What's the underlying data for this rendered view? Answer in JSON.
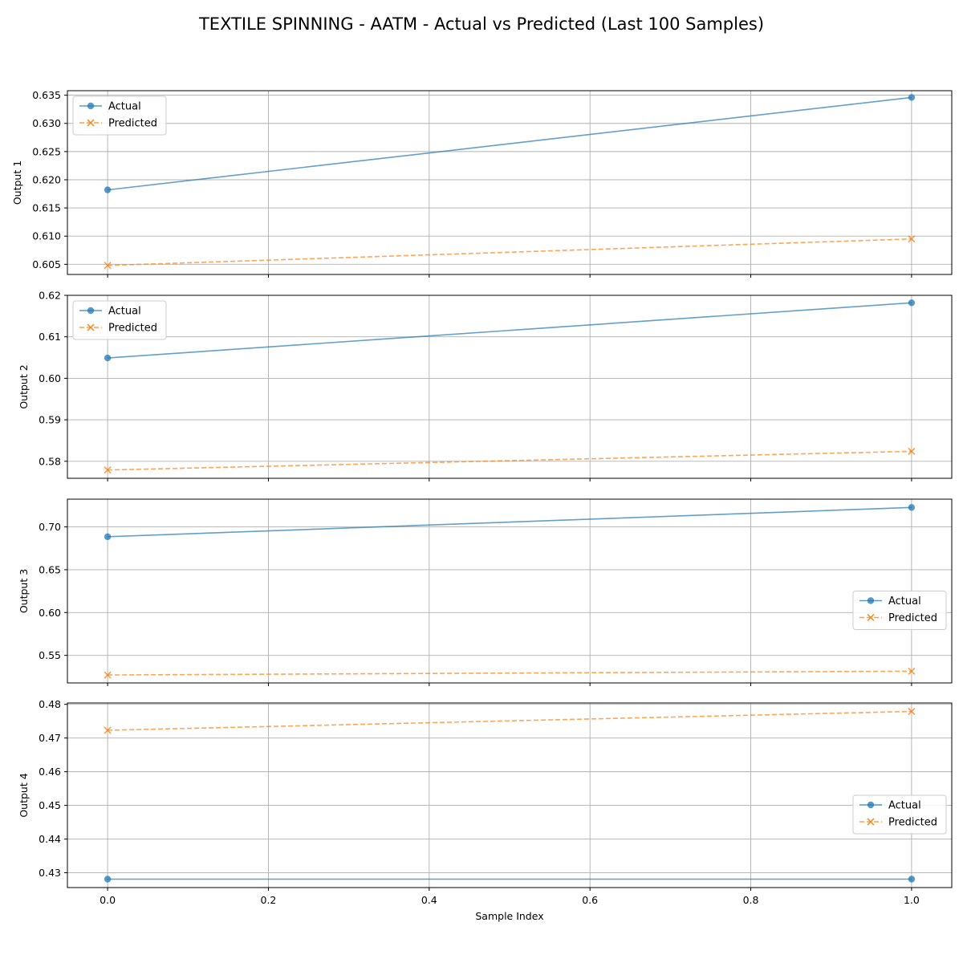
{
  "title": "TEXTILE SPINNING - AATM - Actual vs Predicted (Last 100 Samples)",
  "colors": {
    "actual": "#1f77b4",
    "predicted": "#ff7f0e",
    "grid": "#b0b0b0"
  },
  "chart_data": {
    "type": "line",
    "shared_x": {
      "label": "Sample Index",
      "lim": [
        -0.05,
        1.05
      ],
      "ticks": [
        0.0,
        0.2,
        0.4,
        0.6,
        0.8,
        1.0
      ],
      "tick_labels": [
        "0.0",
        "0.2",
        "0.4",
        "0.6",
        "0.8",
        "1.0"
      ]
    },
    "grid": true,
    "subplots": [
      {
        "ylabel": "Output 1",
        "ylim": [
          0.6032,
          0.6358
        ],
        "yticks": [
          0.605,
          0.61,
          0.615,
          0.62,
          0.625,
          0.63,
          0.635
        ],
        "ytick_labels": [
          "0.605",
          "0.610",
          "0.615",
          "0.620",
          "0.625",
          "0.630",
          "0.635"
        ],
        "legend_loc": "upper-left",
        "series": [
          {
            "name": "Actual",
            "style": "solid-circle",
            "x": [
              0,
              1
            ],
            "values": [
              0.6182,
              0.6346
            ]
          },
          {
            "name": "Predicted",
            "style": "dashed-x",
            "x": [
              0,
              1
            ],
            "values": [
              0.6048,
              0.6095
            ]
          }
        ]
      },
      {
        "ylabel": "Output 2",
        "ylim": [
          0.5759,
          0.62
        ],
        "yticks": [
          0.58,
          0.59,
          0.6,
          0.61,
          0.62
        ],
        "ytick_labels": [
          "0.58",
          "0.59",
          "0.60",
          "0.61",
          "0.62"
        ],
        "legend_loc": "upper-left",
        "series": [
          {
            "name": "Actual",
            "style": "solid-circle",
            "x": [
              0,
              1
            ],
            "values": [
              0.6049,
              0.6182
            ]
          },
          {
            "name": "Predicted",
            "style": "dashed-x",
            "x": [
              0,
              1
            ],
            "values": [
              0.5779,
              0.5824
            ]
          }
        ]
      },
      {
        "ylabel": "Output 3",
        "ylim": [
          0.5178,
          0.7324
        ],
        "yticks": [
          0.55,
          0.6,
          0.65,
          0.7
        ],
        "ytick_labels": [
          "0.55",
          "0.60",
          "0.65",
          "0.70"
        ],
        "legend_loc": "center-right",
        "series": [
          {
            "name": "Actual",
            "style": "solid-circle",
            "x": [
              0,
              1
            ],
            "values": [
              0.6885,
              0.7227
            ]
          },
          {
            "name": "Predicted",
            "style": "dashed-x",
            "x": [
              0,
              1
            ],
            "values": [
              0.5271,
              0.5315
            ]
          }
        ]
      },
      {
        "ylabel": "Output 4",
        "ylim": [
          0.4256,
          0.4804
        ],
        "yticks": [
          0.43,
          0.44,
          0.45,
          0.46,
          0.47,
          0.48
        ],
        "ytick_labels": [
          "0.43",
          "0.44",
          "0.45",
          "0.46",
          "0.47",
          "0.48"
        ],
        "legend_loc": "center-right",
        "series": [
          {
            "name": "Actual",
            "style": "solid-circle",
            "x": [
              0,
              1
            ],
            "values": [
              0.4281,
              0.4281
            ]
          },
          {
            "name": "Predicted",
            "style": "dashed-x",
            "x": [
              0,
              1
            ],
            "values": [
              0.4723,
              0.4779
            ]
          }
        ]
      }
    ]
  }
}
